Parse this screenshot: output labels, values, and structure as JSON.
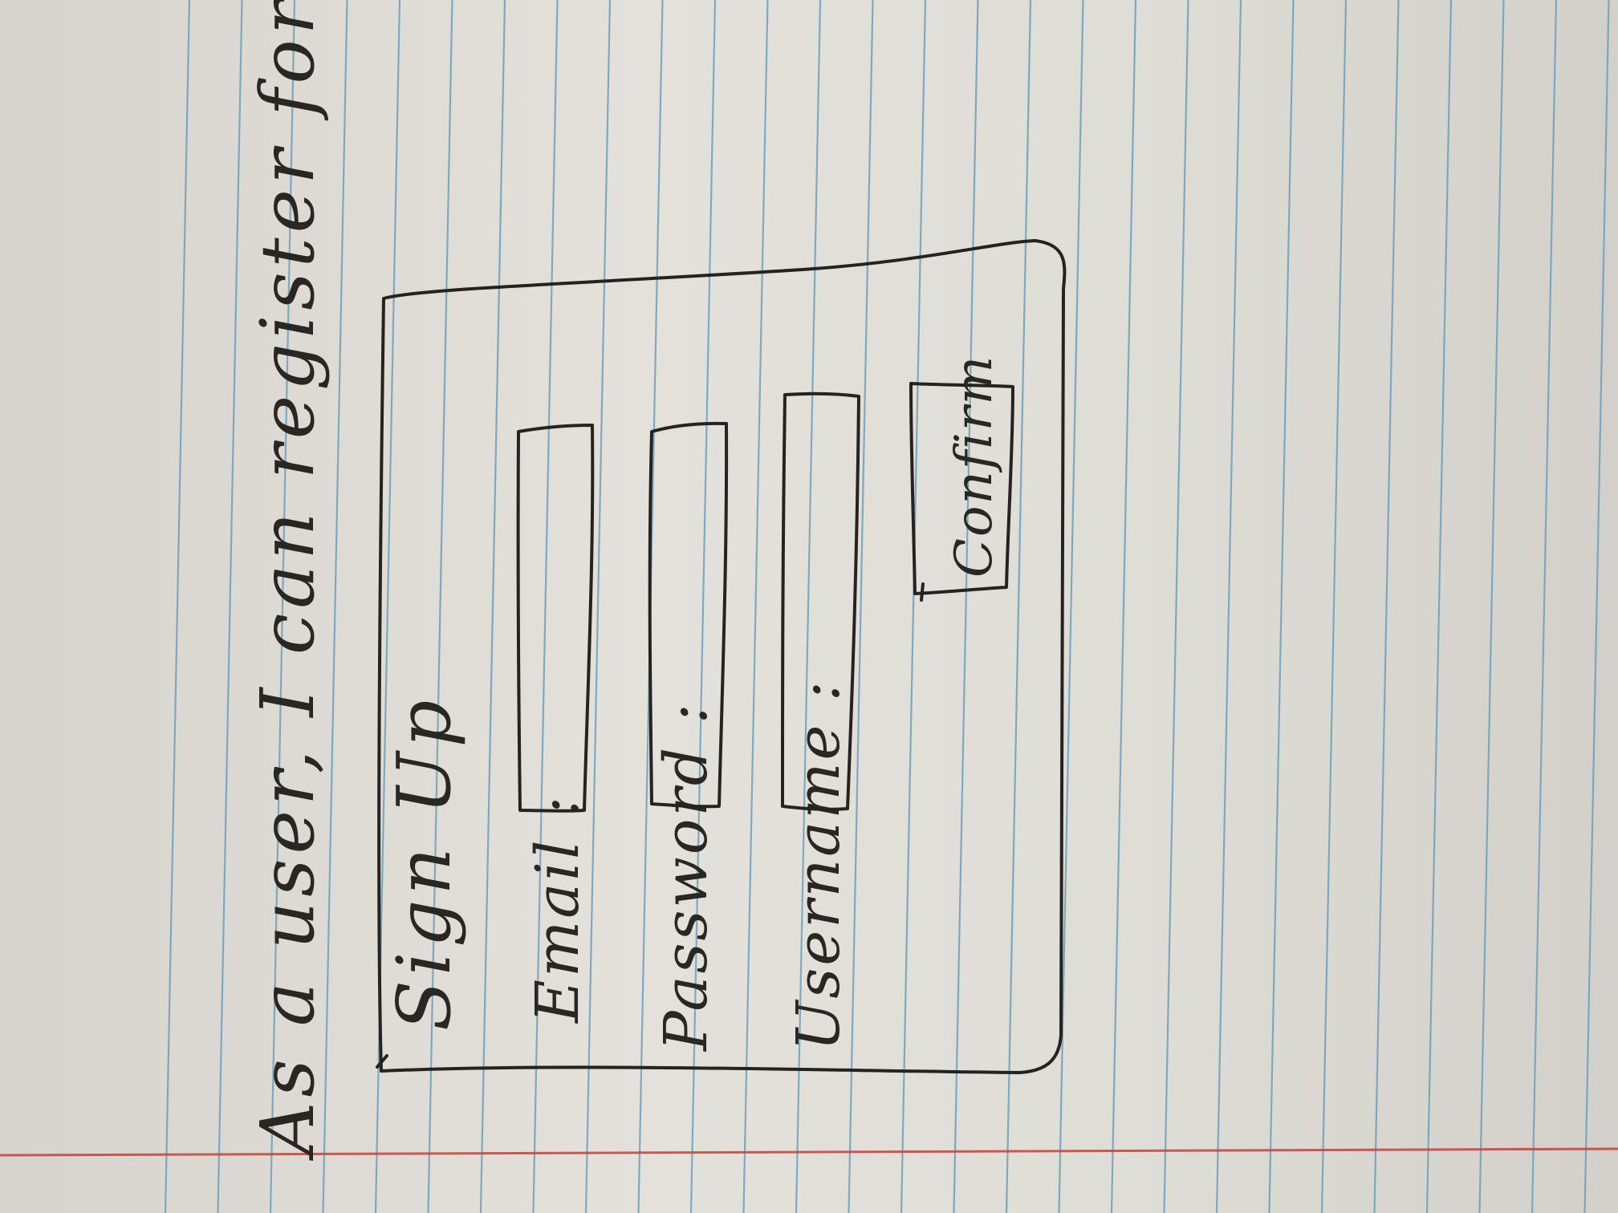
{
  "story": {
    "text": "As a user, I can register for an account."
  },
  "form": {
    "title": "Sign Up",
    "fields": [
      {
        "label": "Email :"
      },
      {
        "label": "Password :"
      },
      {
        "label": "Username :"
      }
    ],
    "confirm_label": "Confirm"
  },
  "colors": {
    "paper": "#dedcd5",
    "rule_lines": "#6e9fbd",
    "margin_line": "#c8403c",
    "ink": "#252220"
  }
}
